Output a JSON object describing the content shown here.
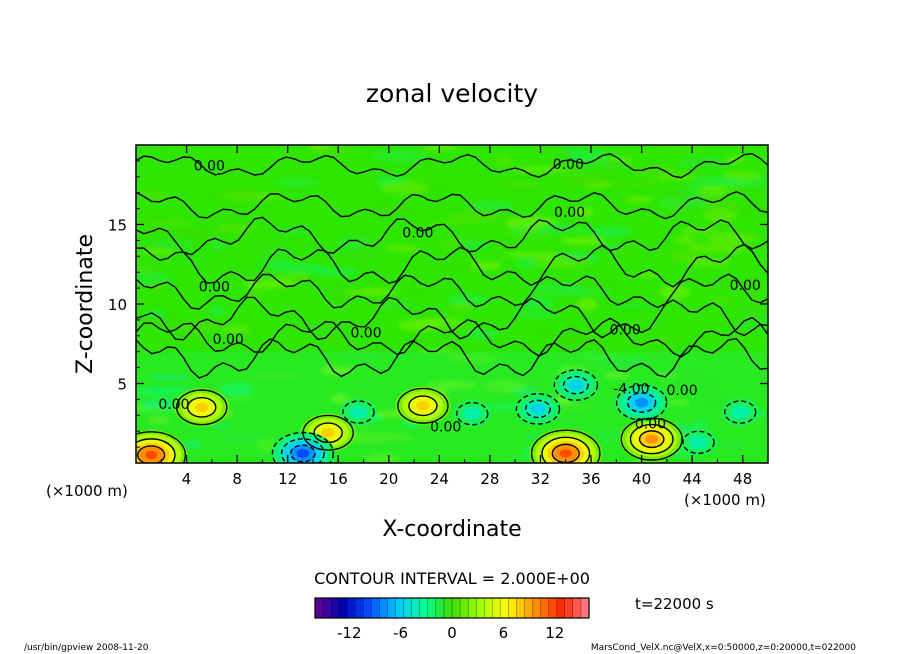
{
  "chart_data": {
    "type": "heatmap",
    "title": "zonal velocity",
    "xlabel": "X-coordinate",
    "ylabel": "Z-coordinate",
    "x_unit_left": "(×1000 m)",
    "x_unit_right": "(×1000 m)",
    "xlim": [
      0,
      50
    ],
    "ylim": [
      0,
      20
    ],
    "x_ticks": [
      "4",
      "8",
      "12",
      "16",
      "20",
      "24",
      "28",
      "32",
      "36",
      "40",
      "44",
      "48"
    ],
    "y_ticks": [
      "5",
      "10",
      "15"
    ],
    "contour_interval_text": "CONTOUR INTERVAL = 2.000E+00",
    "time_text": "t=22000 s",
    "colorbar": {
      "range": [
        -16,
        16
      ],
      "tick_labels": [
        "-12",
        "-6",
        "0",
        "6",
        "12"
      ],
      "colors": [
        "#6a008a",
        "#0000b4",
        "#0050ff",
        "#00c8ff",
        "#00ff96",
        "#3cdc00",
        "#a0ff00",
        "#ffff00",
        "#ff9600",
        "#ff2800",
        "#ff8090"
      ]
    },
    "contour_labels": [
      {
        "text": "0.00",
        "x": 5.8,
        "z": 18.7
      },
      {
        "text": "0.00",
        "x": 34.2,
        "z": 18.8
      },
      {
        "text": "0.00",
        "x": 34.3,
        "z": 15.8
      },
      {
        "text": "0.00",
        "x": 22.3,
        "z": 14.5
      },
      {
        "text": "0.00",
        "x": 6.2,
        "z": 11.1
      },
      {
        "text": "0.00",
        "x": 48.2,
        "z": 11.2
      },
      {
        "text": "0.00",
        "x": 7.3,
        "z": 7.8
      },
      {
        "text": "0.00",
        "x": 18.2,
        "z": 8.2
      },
      {
        "text": "0.00",
        "x": 38.7,
        "z": 8.4
      },
      {
        "text": "-4.00",
        "x": 39.2,
        "z": 4.7
      },
      {
        "text": "0.00",
        "x": 43.2,
        "z": 4.6
      },
      {
        "text": "0.00",
        "x": 3.0,
        "z": 3.7
      },
      {
        "text": "0.00",
        "x": 24.5,
        "z": 2.3
      },
      {
        "text": "0.00",
        "x": 40.7,
        "z": 2.5
      }
    ],
    "features": [
      {
        "kind": "positive",
        "x": 1.2,
        "z": 0.5,
        "value": 12
      },
      {
        "kind": "positive",
        "x": 5.2,
        "z": 3.5,
        "value": 8
      },
      {
        "kind": "positive",
        "x": 15.2,
        "z": 1.9,
        "value": 8
      },
      {
        "kind": "positive",
        "x": 22.7,
        "z": 3.6,
        "value": 8
      },
      {
        "kind": "positive",
        "x": 34.0,
        "z": 0.6,
        "value": 12
      },
      {
        "kind": "positive",
        "x": 40.8,
        "z": 1.5,
        "value": 10
      },
      {
        "kind": "negative",
        "x": 31.8,
        "z": 3.4,
        "value": -6
      },
      {
        "kind": "negative",
        "x": 34.8,
        "z": 4.9,
        "value": -6
      },
      {
        "kind": "negative",
        "x": 40.0,
        "z": 3.8,
        "value": -8
      },
      {
        "kind": "negative",
        "x": 13.2,
        "z": 0.6,
        "value": -10
      },
      {
        "kind": "negative",
        "x": 17.6,
        "z": 3.2,
        "value": -4
      },
      {
        "kind": "negative",
        "x": 26.6,
        "z": 3.1,
        "value": -4
      },
      {
        "kind": "negative",
        "x": 44.5,
        "z": 1.3,
        "value": -4
      },
      {
        "kind": "negative",
        "x": 47.8,
        "z": 3.2,
        "value": -4
      }
    ]
  },
  "footer": {
    "left": "/usr/bin/gpview   2008-11-20",
    "right": "MarsCond_VelX.nc@VelX,x=0:50000,z=0:20000,t=022000"
  }
}
